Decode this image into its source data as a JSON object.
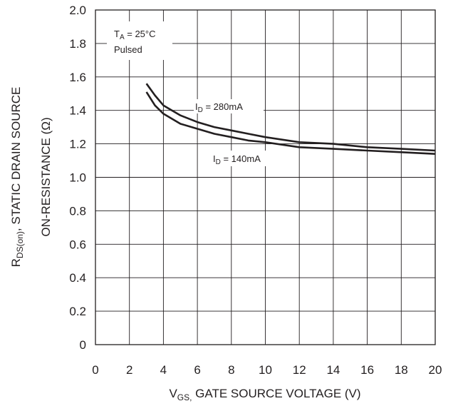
{
  "chart_data": {
    "type": "line",
    "xlabel": {
      "main": "V",
      "sub": "GS,",
      "rest": " GATE SOURCE VOLTAGE (V)"
    },
    "ylabel": {
      "line1": {
        "main": "R",
        "sub": "DS(on)",
        "rest": ", STATIC DRAIN SOURCE"
      },
      "line2": "ON-RESISTANCE (Ω)"
    },
    "xlim": [
      0,
      20
    ],
    "ylim": [
      0,
      2.0
    ],
    "x_ticks": [
      "0",
      "2",
      "4",
      "6",
      "8",
      "10",
      "12",
      "14",
      "16",
      "18",
      "20"
    ],
    "y_ticks": [
      "0",
      "0.2",
      "0.4",
      "0.6",
      "0.8",
      "1.0",
      "1.2",
      "1.4",
      "1.6",
      "1.8",
      "2.0"
    ],
    "grid": true,
    "condition": {
      "ta_main": "T",
      "ta_sub": "A",
      "ta_rest": " = 25°C",
      "line2": "Pulsed"
    },
    "series": [
      {
        "name": "I_D = 280mA",
        "label": {
          "main": "I",
          "sub": "D",
          "rest": " = 280mA"
        },
        "x": [
          3,
          3.5,
          4,
          5,
          6,
          7,
          8,
          9,
          10,
          12,
          14,
          16,
          18,
          20
        ],
        "y": [
          1.56,
          1.49,
          1.43,
          1.37,
          1.33,
          1.3,
          1.28,
          1.26,
          1.24,
          1.21,
          1.2,
          1.18,
          1.17,
          1.16
        ]
      },
      {
        "name": "I_D = 140mA",
        "label": {
          "main": "I",
          "sub": "D",
          "rest": " = 140mA"
        },
        "x": [
          3,
          3.5,
          4,
          5,
          6,
          7,
          8,
          9,
          10,
          12,
          14,
          16,
          18,
          20
        ],
        "y": [
          1.51,
          1.43,
          1.38,
          1.32,
          1.29,
          1.26,
          1.24,
          1.22,
          1.21,
          1.18,
          1.17,
          1.16,
          1.15,
          1.14
        ]
      }
    ]
  },
  "colors": {
    "line": "#231f20",
    "grid": "#231f20",
    "background": "#ffffff"
  }
}
